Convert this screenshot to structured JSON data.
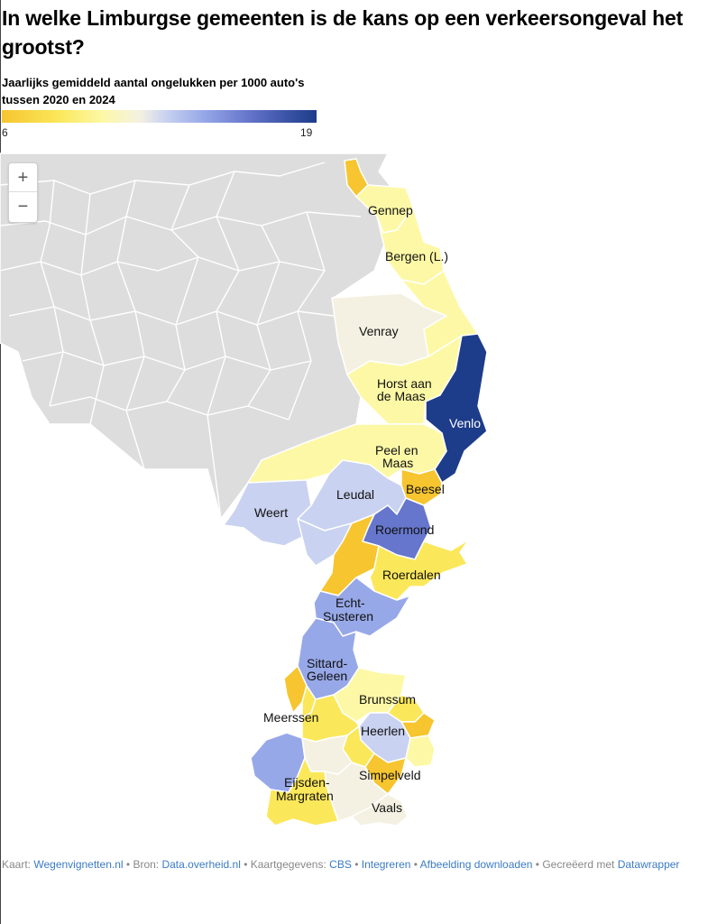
{
  "title": "In welke Limburgse gemeenten is de kans op een verkeersongeval het grootst?",
  "subtitle": "Jaarlijks gemiddeld aantal ongelukken per 1000 auto's tussen 2020 en 2024",
  "legend": {
    "min": "6",
    "max": "19",
    "colors": [
      "#f6c52f",
      "#fbe75a",
      "#fdf8a6",
      "#f4f1e2",
      "#c9d2f0",
      "#97a8e8",
      "#6676cc",
      "#1d3c8a"
    ]
  },
  "zoom": {
    "in_label": "+",
    "out_label": "−"
  },
  "map": {
    "background_color": "#dddddd",
    "border_color": "#ffffff",
    "labels": {
      "gennep": "Gennep",
      "bergen": "Bergen (L.)",
      "venray": "Venray",
      "horst1": "Horst aan",
      "horst2": "de Maas",
      "venlo": "Venlo",
      "peel1": "Peel en",
      "peel2": "Maas",
      "leudal": "Leudal",
      "beesel": "Beesel",
      "weert": "Weert",
      "roermond": "Roermond",
      "roerdalen": "Roerdalen",
      "echt1": "Echt-",
      "echt2": "Susteren",
      "sittard1": "Sittard-",
      "sittard2": "Geleen",
      "brunssum": "Brunssum",
      "meerssen": "Meerssen",
      "heerlen": "Heerlen",
      "simpelveld": "Simpelveld",
      "eijsden1": "Eijsden-",
      "eijsden2": "Margraten",
      "vaals": "Vaals"
    }
  },
  "footer": {
    "kaart_label": "Kaart:",
    "kaart_link": "Wegenvignetten.nl",
    "bron_label": "Bron:",
    "bron_link": "Data.overheid.nl",
    "kaartgegevens_label": "Kaartgegevens:",
    "kaartgegevens_link": "CBS",
    "integreren": "Integreren",
    "download": "Afbeelding downloaden",
    "gecreeerd": "Gecreëerd met",
    "datawrapper": "Datawrapper"
  }
}
